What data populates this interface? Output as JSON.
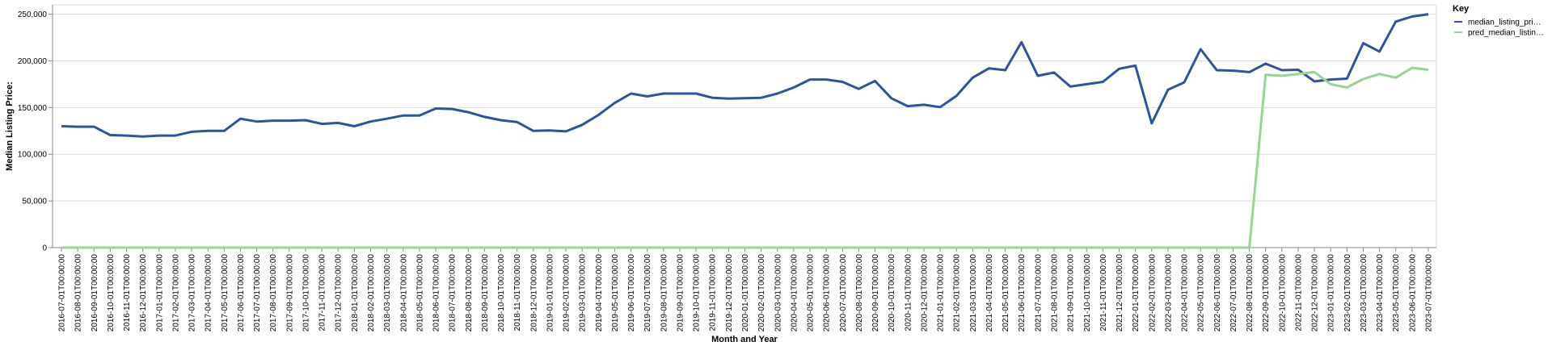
{
  "chart_data": {
    "type": "line",
    "xlabel": "Month and Year",
    "ylabel": "Median Listing Price:",
    "ylim": [
      0,
      260000
    ],
    "yticks": [
      0,
      50000,
      100000,
      150000,
      200000,
      250000
    ],
    "ytick_labels": [
      "0",
      "50,000",
      "100,000",
      "150,000",
      "200,000",
      "250,000"
    ],
    "grid": true,
    "legend": {
      "title": "Key",
      "position": "top-right"
    },
    "x": [
      "2016-07-01T00:00:00",
      "2016-08-01T00:00:00",
      "2016-09-01T00:00:00",
      "2016-10-01T00:00:00",
      "2016-11-01T00:00:00",
      "2016-12-01T00:00:00",
      "2017-01-01T00:00:00",
      "2017-02-01T00:00:00",
      "2017-03-01T00:00:00",
      "2017-04-01T00:00:00",
      "2017-05-01T00:00:00",
      "2017-06-01T00:00:00",
      "2017-07-01T00:00:00",
      "2017-08-01T00:00:00",
      "2017-09-01T00:00:00",
      "2017-10-01T00:00:00",
      "2017-11-01T00:00:00",
      "2017-12-01T00:00:00",
      "2018-01-01T00:00:00",
      "2018-02-01T00:00:00",
      "2018-03-01T00:00:00",
      "2018-04-01T00:00:00",
      "2018-05-01T00:00:00",
      "2018-06-01T00:00:00",
      "2018-07-01T00:00:00",
      "2018-08-01T00:00:00",
      "2018-09-01T00:00:00",
      "2018-10-01T00:00:00",
      "2018-11-01T00:00:00",
      "2018-12-01T00:00:00",
      "2019-01-01T00:00:00",
      "2019-02-01T00:00:00",
      "2019-03-01T00:00:00",
      "2019-04-01T00:00:00",
      "2019-05-01T00:00:00",
      "2019-06-01T00:00:00",
      "2019-07-01T00:00:00",
      "2019-08-01T00:00:00",
      "2019-09-01T00:00:00",
      "2019-10-01T00:00:00",
      "2019-11-01T00:00:00",
      "2019-12-01T00:00:00",
      "2020-01-01T00:00:00",
      "2020-02-01T00:00:00",
      "2020-03-01T00:00:00",
      "2020-04-01T00:00:00",
      "2020-05-01T00:00:00",
      "2020-06-01T00:00:00",
      "2020-07-01T00:00:00",
      "2020-08-01T00:00:00",
      "2020-09-01T00:00:00",
      "2020-10-01T00:00:00",
      "2020-11-01T00:00:00",
      "2020-12-01T00:00:00",
      "2021-01-01T00:00:00",
      "2021-02-01T00:00:00",
      "2021-03-01T00:00:00",
      "2021-04-01T00:00:00",
      "2021-05-01T00:00:00",
      "2021-06-01T00:00:00",
      "2021-07-01T00:00:00",
      "2021-08-01T00:00:00",
      "2021-09-01T00:00:00",
      "2021-10-01T00:00:00",
      "2021-11-01T00:00:00",
      "2021-12-01T00:00:00",
      "2022-01-01T00:00:00",
      "2022-02-01T00:00:00",
      "2022-03-01T00:00:00",
      "2022-04-01T00:00:00",
      "2022-05-01T00:00:00",
      "2022-06-01T00:00:00",
      "2022-07-01T00:00:00",
      "2022-08-01T00:00:00",
      "2022-09-01T00:00:00",
      "2022-10-01T00:00:00",
      "2022-11-01T00:00:00",
      "2022-12-01T00:00:00",
      "2023-01-01T00:00:00",
      "2023-02-01T00:00:00",
      "2023-03-01T00:00:00",
      "2023-04-01T00:00:00",
      "2023-05-01T00:00:00",
      "2023-06-01T00:00:00",
      "2023-07-01T00:00:00"
    ],
    "series": [
      {
        "name": "median_listing_pri…",
        "color": "#2c54a0",
        "values": [
          130000,
          129500,
          129500,
          120500,
          120000,
          119000,
          120000,
          120000,
          124000,
          125000,
          125000,
          138000,
          135000,
          136000,
          136000,
          136500,
          132500,
          133500,
          130000,
          135000,
          138000,
          141500,
          141500,
          149000,
          148500,
          145000,
          140000,
          136500,
          134500,
          125000,
          125500,
          124500,
          131500,
          142000,
          155000,
          165000,
          162000,
          165000,
          165000,
          165000,
          160500,
          159500,
          160000,
          160500,
          165000,
          171500,
          180000,
          180000,
          177500,
          170000,
          178500,
          160000,
          151500,
          153000,
          150500,
          162500,
          182000,
          192000,
          190000,
          220000,
          184000,
          187500,
          172500,
          175000,
          177500,
          191500,
          195000,
          133000,
          169000,
          177000,
          212500,
          190000,
          189500,
          188000,
          197000,
          190000,
          190500,
          178000,
          180000,
          181000,
          219000,
          210000,
          242000,
          247500,
          250000
        ]
      },
      {
        "name": "pred_median_listin…",
        "color": "#98d493",
        "values": [
          0,
          0,
          0,
          0,
          0,
          0,
          0,
          0,
          0,
          0,
          0,
          0,
          0,
          0,
          0,
          0,
          0,
          0,
          0,
          0,
          0,
          0,
          0,
          0,
          0,
          0,
          0,
          0,
          0,
          0,
          0,
          0,
          0,
          0,
          0,
          0,
          0,
          0,
          0,
          0,
          0,
          0,
          0,
          0,
          0,
          0,
          0,
          0,
          0,
          0,
          0,
          0,
          0,
          0,
          0,
          0,
          0,
          0,
          0,
          0,
          0,
          0,
          0,
          0,
          0,
          0,
          0,
          0,
          0,
          0,
          0,
          0,
          0,
          0,
          185000,
          184000,
          186000,
          188000,
          175000,
          171500,
          180500,
          186000,
          182000,
          192500,
          190500
        ]
      }
    ]
  }
}
